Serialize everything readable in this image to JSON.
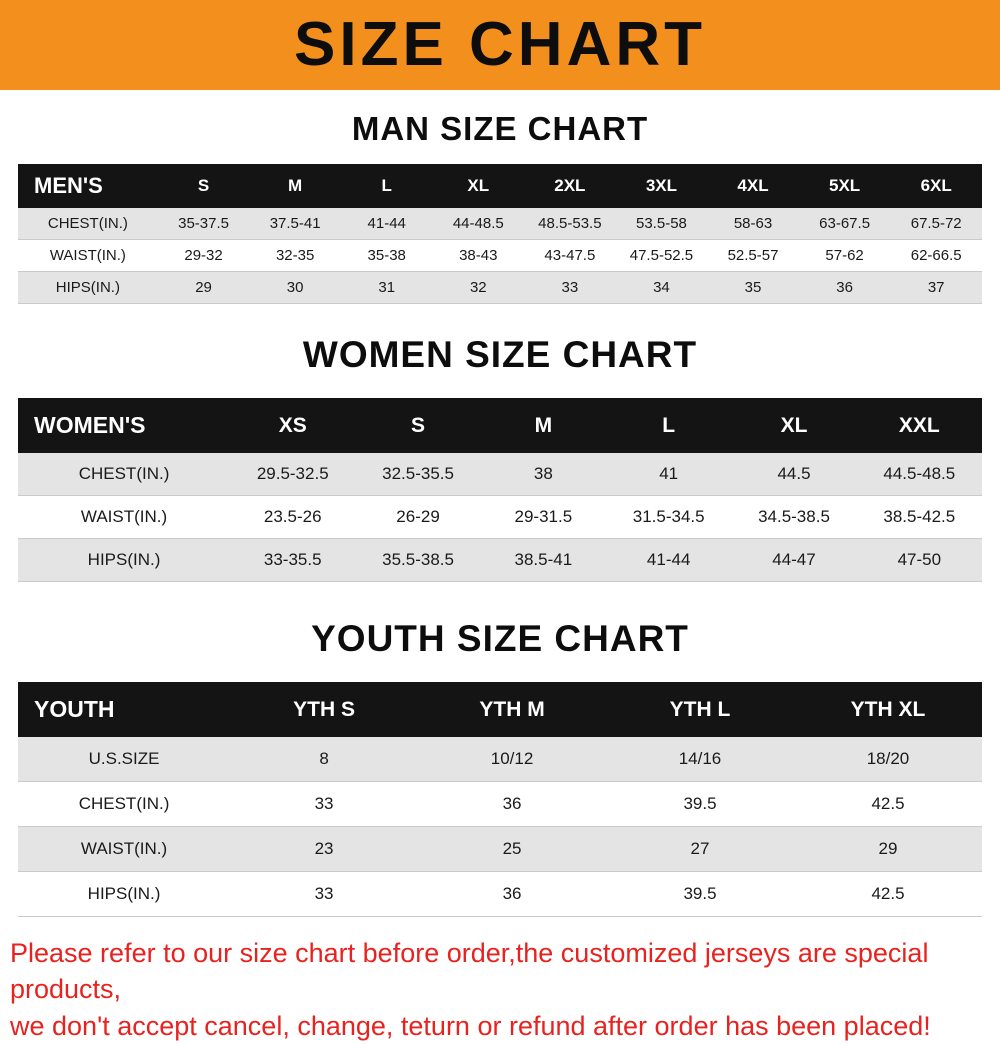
{
  "banner": {
    "title": "SIZE CHART"
  },
  "colors": {
    "banner_bg": "#f3901d",
    "table_header_bg": "#141414",
    "row_alt_bg": "#e4e4e4",
    "note_red": "#e8231f"
  },
  "chart_data": [
    {
      "type": "table",
      "title": "MAN SIZE CHART",
      "columns": [
        "MEN'S",
        "S",
        "M",
        "L",
        "XL",
        "2XL",
        "3XL",
        "4XL",
        "5XL",
        "6XL"
      ],
      "rows": [
        [
          "CHEST(IN.)",
          "35-37.5",
          "37.5-41",
          "41-44",
          "44-48.5",
          "48.5-53.5",
          "53.5-58",
          "58-63",
          "63-67.5",
          "67.5-72"
        ],
        [
          "WAIST(IN.)",
          "29-32",
          "32-35",
          "35-38",
          "38-43",
          "43-47.5",
          "47.5-52.5",
          "52.5-57",
          "57-62",
          "62-66.5"
        ],
        [
          "HIPS(IN.)",
          "29",
          "30",
          "31",
          "32",
          "33",
          "34",
          "35",
          "36",
          "37"
        ]
      ]
    },
    {
      "type": "table",
      "title": "WOMEN SIZE CHART",
      "columns": [
        "WOMEN'S",
        "XS",
        "S",
        "M",
        "L",
        "XL",
        "XXL"
      ],
      "rows": [
        [
          "CHEST(IN.)",
          "29.5-32.5",
          "32.5-35.5",
          "38",
          "41",
          "44.5",
          "44.5-48.5"
        ],
        [
          "WAIST(IN.)",
          "23.5-26",
          "26-29",
          "29-31.5",
          "31.5-34.5",
          "34.5-38.5",
          "38.5-42.5"
        ],
        [
          "HIPS(IN.)",
          "33-35.5",
          "35.5-38.5",
          "38.5-41",
          "41-44",
          "44-47",
          "47-50"
        ]
      ]
    },
    {
      "type": "table",
      "title": "YOUTH SIZE CHART",
      "columns": [
        "YOUTH",
        "YTH S",
        "YTH M",
        "YTH L",
        "YTH XL"
      ],
      "rows": [
        [
          "U.S.SIZE",
          "8",
          "10/12",
          "14/16",
          "18/20"
        ],
        [
          "CHEST(IN.)",
          "33",
          "36",
          "39.5",
          "42.5"
        ],
        [
          "WAIST(IN.)",
          "23",
          "25",
          "27",
          "29"
        ],
        [
          "HIPS(IN.)",
          "33",
          "36",
          "39.5",
          "42.5"
        ]
      ]
    }
  ],
  "footer_note": {
    "line1": "Please refer to our size chart before order,the customized jerseys are special products,",
    "line2": "we don't accept cancel, change, teturn or refund after order has been placed!"
  }
}
